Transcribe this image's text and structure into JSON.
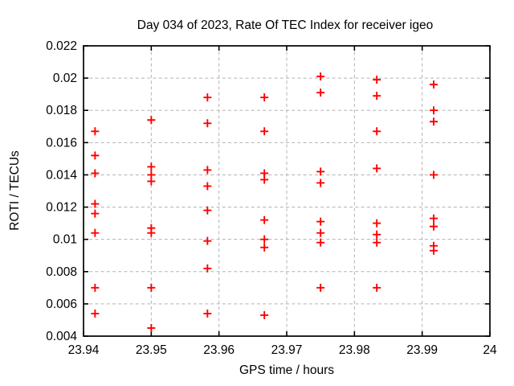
{
  "chart_data": {
    "type": "scatter",
    "title": "Day 034 of 2023, Rate Of TEC Index for receiver igeo",
    "xlabel": "GPS time / hours",
    "ylabel": "ROTI / TECUs",
    "xlim": [
      23.94,
      24
    ],
    "ylim": [
      0.004,
      0.022
    ],
    "grid": true,
    "legend": "none",
    "marker": "plus",
    "marker_color": "#ff0000",
    "grid_color": "#b3b3b3",
    "border_color": "#000000",
    "background_color": "#ffffff",
    "x_ticks": [
      {
        "v": 23.94,
        "label": "23.94"
      },
      {
        "v": 23.95,
        "label": "23.95"
      },
      {
        "v": 23.96,
        "label": "23.96"
      },
      {
        "v": 23.97,
        "label": "23.97"
      },
      {
        "v": 23.98,
        "label": "23.98"
      },
      {
        "v": 23.99,
        "label": "23.99"
      },
      {
        "v": 24,
        "label": "24"
      }
    ],
    "y_ticks": [
      {
        "v": 0.004,
        "label": "0.004"
      },
      {
        "v": 0.006,
        "label": "0.006"
      },
      {
        "v": 0.008,
        "label": "0.008"
      },
      {
        "v": 0.01,
        "label": "0.01"
      },
      {
        "v": 0.012,
        "label": "0.012"
      },
      {
        "v": 0.014,
        "label": "0.014"
      },
      {
        "v": 0.016,
        "label": "0.016"
      },
      {
        "v": 0.018,
        "label": "0.018"
      },
      {
        "v": 0.02,
        "label": "0.02"
      },
      {
        "v": 0.022,
        "label": "0.022"
      }
    ],
    "points": [
      [
        23.9417,
        0.0167
      ],
      [
        23.9417,
        0.0152
      ],
      [
        23.9417,
        0.0141
      ],
      [
        23.9417,
        0.0122
      ],
      [
        23.9417,
        0.0116
      ],
      [
        23.9417,
        0.0104
      ],
      [
        23.9417,
        0.007
      ],
      [
        23.9417,
        0.0054
      ],
      [
        23.95,
        0.0174
      ],
      [
        23.95,
        0.0145
      ],
      [
        23.95,
        0.014
      ],
      [
        23.95,
        0.0136
      ],
      [
        23.95,
        0.0107
      ],
      [
        23.95,
        0.0104
      ],
      [
        23.95,
        0.007
      ],
      [
        23.95,
        0.0045
      ],
      [
        23.9583,
        0.0188
      ],
      [
        23.9583,
        0.0172
      ],
      [
        23.9583,
        0.0143
      ],
      [
        23.9583,
        0.0133
      ],
      [
        23.9583,
        0.0118
      ],
      [
        23.9583,
        0.0099
      ],
      [
        23.9583,
        0.0082
      ],
      [
        23.9583,
        0.0054
      ],
      [
        23.9667,
        0.0188
      ],
      [
        23.9667,
        0.0167
      ],
      [
        23.9667,
        0.0141
      ],
      [
        23.9667,
        0.0137
      ],
      [
        23.9667,
        0.0112
      ],
      [
        23.9667,
        0.01
      ],
      [
        23.9667,
        0.0095
      ],
      [
        23.9667,
        0.0053
      ],
      [
        23.975,
        0.0201
      ],
      [
        23.975,
        0.0191
      ],
      [
        23.975,
        0.0142
      ],
      [
        23.975,
        0.0135
      ],
      [
        23.975,
        0.0111
      ],
      [
        23.975,
        0.0104
      ],
      [
        23.975,
        0.0098
      ],
      [
        23.975,
        0.007
      ],
      [
        23.9833,
        0.0199
      ],
      [
        23.9833,
        0.0189
      ],
      [
        23.9833,
        0.0167
      ],
      [
        23.9833,
        0.0144
      ],
      [
        23.9833,
        0.011
      ],
      [
        23.9833,
        0.0103
      ],
      [
        23.9833,
        0.0098
      ],
      [
        23.9833,
        0.007
      ],
      [
        23.9917,
        0.0196
      ],
      [
        23.9917,
        0.018
      ],
      [
        23.9917,
        0.0173
      ],
      [
        23.9917,
        0.014
      ],
      [
        23.9917,
        0.0113
      ],
      [
        23.9917,
        0.0108
      ],
      [
        23.9917,
        0.0096
      ],
      [
        23.9917,
        0.0093
      ]
    ]
  }
}
